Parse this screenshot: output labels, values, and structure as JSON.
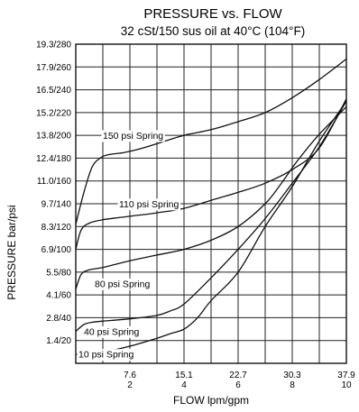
{
  "chart_data": {
    "type": "line",
    "title": "PRESSURE vs. FLOW",
    "subtitle": "32 cSt/150 sus oil at 40°C (104°F)",
    "xlabel": "FLOW lpm/gpm",
    "ylabel": "PRESSURE bar/psi",
    "xlim": [
      0,
      10
    ],
    "ylim": [
      0,
      280
    ],
    "grid": true,
    "x_ticks": [
      {
        "value": 2,
        "top": "7.6",
        "bottom": "2"
      },
      {
        "value": 4,
        "top": "15.1",
        "bottom": "4"
      },
      {
        "value": 6,
        "top": "22.7",
        "bottom": "6"
      },
      {
        "value": 8,
        "top": "30.3",
        "bottom": "8"
      },
      {
        "value": 10,
        "top": "37.9",
        "bottom": "10"
      }
    ],
    "y_ticks": [
      {
        "value": 20,
        "label": "1.4/20"
      },
      {
        "value": 40,
        "label": "2.8/40"
      },
      {
        "value": 60,
        "label": "4.1/60"
      },
      {
        "value": 80,
        "label": "5.5/80"
      },
      {
        "value": 100,
        "label": "6.9/100"
      },
      {
        "value": 120,
        "label": "8.3/120"
      },
      {
        "value": 140,
        "label": "9.7/140"
      },
      {
        "value": 160,
        "label": "11.0/160"
      },
      {
        "value": 180,
        "label": "12.4/180"
      },
      {
        "value": 200,
        "label": "13.8/200"
      },
      {
        "value": 220,
        "label": "15.2/220"
      },
      {
        "value": 240,
        "label": "16.5/240"
      },
      {
        "value": 260,
        "label": "17.9/260"
      },
      {
        "value": 280,
        "label": "19.3/280"
      }
    ],
    "series": [
      {
        "name": "150 psi Spring",
        "x": [
          0,
          0.3,
          0.6,
          0.9,
          1.2,
          1.8,
          2.5,
          3.3,
          4.0,
          5.0,
          6.0,
          7.0,
          8.0,
          9.0,
          10.0
        ],
        "y": [
          122,
          150,
          172,
          180,
          183,
          185,
          189,
          195,
          200,
          205,
          212,
          220,
          233,
          249,
          267
        ],
        "label_at": {
          "x": 1.0,
          "y": 197
        }
      },
      {
        "name": "110 psi Spring",
        "x": [
          0,
          0.2,
          0.5,
          1.0,
          2.0,
          3.0,
          4.0,
          5.0,
          6.0,
          7.0,
          8.0,
          9.0,
          10.0
        ],
        "y": [
          100,
          117,
          123,
          126,
          129,
          132,
          136,
          143,
          150,
          158,
          170,
          189,
          232
        ],
        "label_at": {
          "x": 1.6,
          "y": 137
        }
      },
      {
        "name": "80 psi Spring",
        "x": [
          0,
          0.2,
          0.5,
          1.0,
          2.0,
          3.0,
          4.0,
          5.0,
          6.0,
          7.0,
          7.6,
          8.2,
          9.0,
          10.0
        ],
        "y": [
          65,
          78,
          82,
          84,
          90,
          95,
          100,
          108,
          120,
          140,
          158,
          178,
          201,
          225
        ],
        "label_at": {
          "x": 0.7,
          "y": 67
        }
      },
      {
        "name": "40 psi Spring",
        "x": [
          0,
          0.3,
          0.6,
          1.0,
          2.0,
          3.0,
          3.5,
          4.0,
          5.0,
          6.0,
          7.0,
          8.0,
          9.0,
          10.0
        ],
        "y": [
          28,
          34,
          36,
          37,
          39,
          42,
          46,
          52,
          75,
          100,
          127,
          158,
          190,
          230
        ],
        "label_at": {
          "x": 0.3,
          "y": 25
        }
      },
      {
        "name": "10 psi Spring",
        "x": [
          0,
          1.0,
          2.0,
          3.0,
          3.5,
          4.0,
          4.5,
          5.0,
          6.0,
          7.0,
          8.0,
          9.0,
          10.0
        ],
        "y": [
          8,
          10,
          15,
          22,
          26,
          30,
          40,
          55,
          80,
          120,
          155,
          195,
          230
        ],
        "label_at": {
          "x": 0.1,
          "y": 5
        }
      }
    ]
  }
}
